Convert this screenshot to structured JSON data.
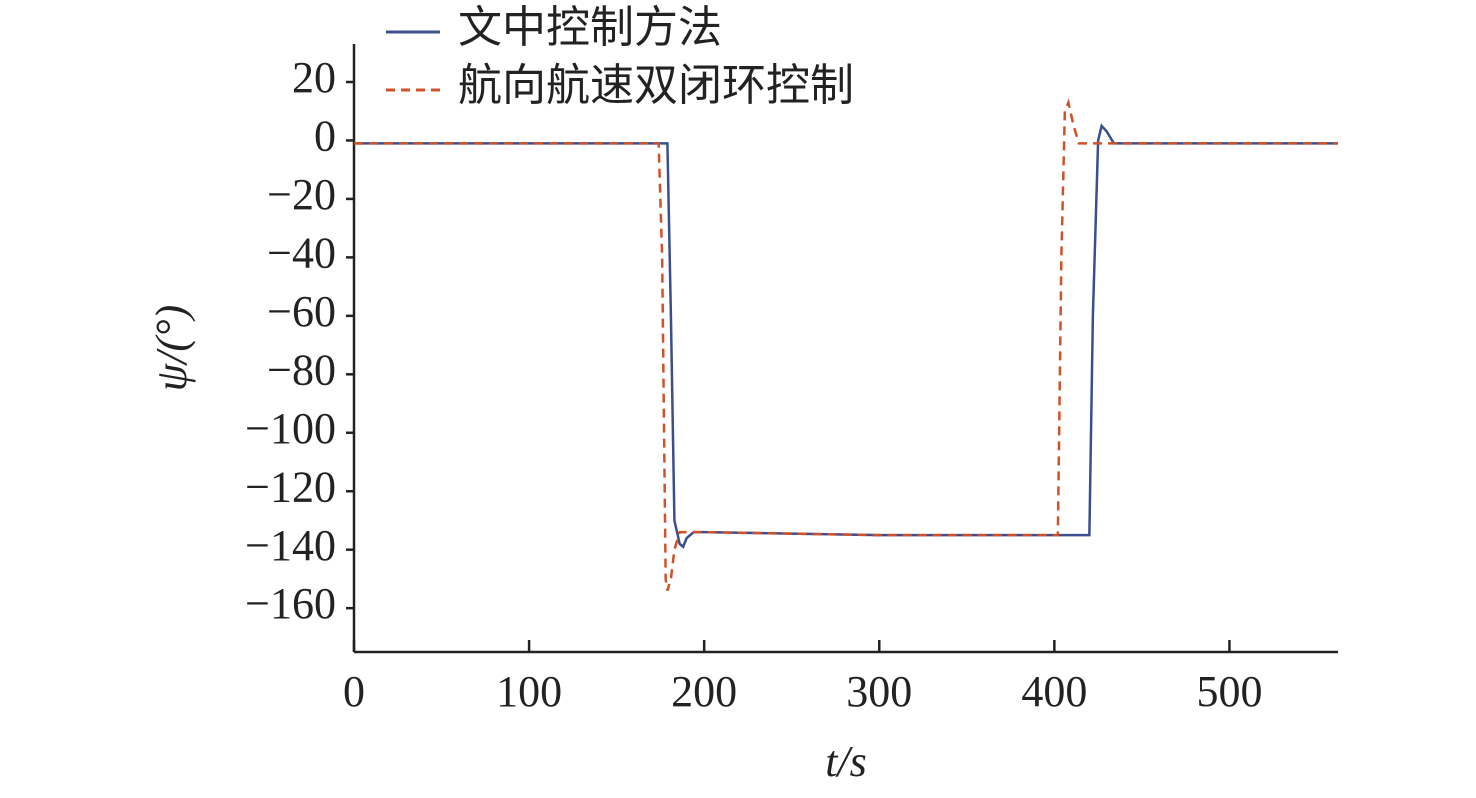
{
  "chart_data": {
    "type": "line",
    "x_label": "t/s",
    "y_label": "ψ/(°)",
    "x": [
      0,
      174,
      176,
      178,
      179,
      181,
      183,
      186,
      188,
      190,
      194,
      200,
      300,
      402,
      404,
      406,
      408,
      411,
      414,
      420,
      422,
      425,
      427,
      430,
      434,
      440,
      562
    ],
    "series": [
      {
        "name": "文中控制方法",
        "color": "#3b4e8e",
        "dash": false,
        "values": [
          -1,
          -1,
          -1,
          -1,
          -1,
          -60,
          -130,
          -138,
          -139,
          -136,
          -134,
          -134,
          -135,
          -135,
          -135,
          -135,
          -135,
          -135,
          -135,
          -135,
          -60,
          0,
          5,
          3,
          -1,
          -1,
          -1
        ]
      },
      {
        "name": "航向航速双闭环控制",
        "color": "#d0522a",
        "dash": true,
        "values": [
          -1,
          -1,
          -40,
          -150,
          -154,
          -150,
          -140,
          -134,
          -134,
          -134,
          -134,
          -134,
          -135,
          -135,
          -40,
          10,
          13,
          5,
          -1,
          -1,
          -1,
          -1,
          -1,
          -1,
          -1,
          -1,
          -1
        ]
      }
    ],
    "xlim": [
      0,
      562
    ],
    "ylim": [
      -175,
      33
    ],
    "xticks": [
      0,
      100,
      200,
      300,
      400,
      500
    ],
    "yticks": [
      20,
      0,
      {
        "value": -20,
        "label": "−20"
      },
      {
        "value": -40,
        "label": "−40"
      },
      {
        "value": -60,
        "label": "−60"
      },
      {
        "value": -80,
        "label": "−80"
      },
      {
        "value": -100,
        "label": "−100"
      },
      {
        "value": -120,
        "label": "−120"
      },
      {
        "value": -140,
        "label": "−140"
      },
      {
        "value": -160,
        "label": "−160"
      }
    ],
    "grid": false
  }
}
